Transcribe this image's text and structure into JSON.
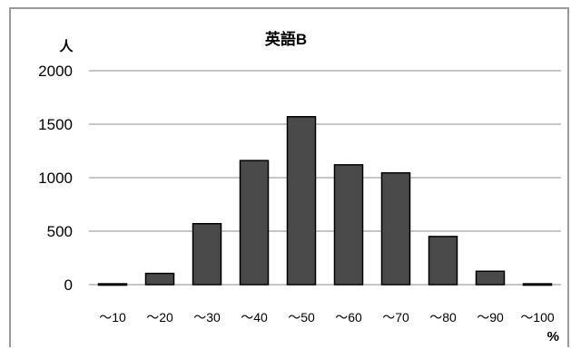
{
  "chart_data": {
    "type": "bar",
    "title": "英語B",
    "ylabel": "人",
    "xlabel": "%",
    "categories": [
      "～10",
      "～20",
      "～30",
      "～40",
      "～50",
      "～60",
      "～70",
      "～80",
      "～90",
      "～100"
    ],
    "values": [
      8,
      105,
      570,
      1160,
      1570,
      1120,
      1045,
      450,
      125,
      8
    ],
    "ylim": [
      0,
      2000
    ],
    "yticks": [
      0,
      500,
      1000,
      1500,
      2000
    ],
    "grid": true,
    "bar_color": "#4a4a4a",
    "bar_edge_color": "#000000"
  }
}
